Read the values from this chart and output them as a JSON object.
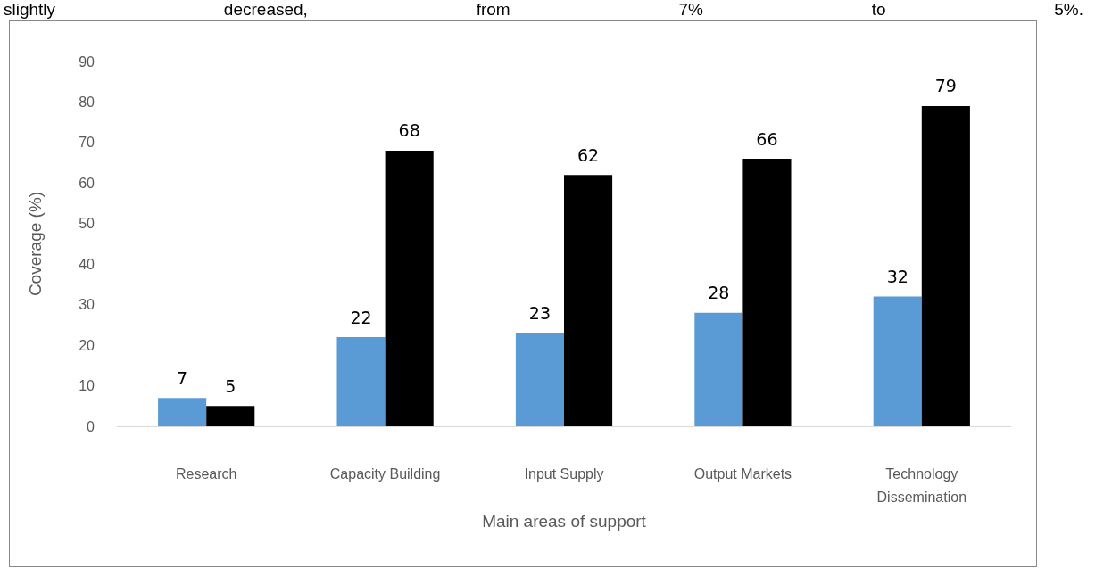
{
  "chart_data": {
    "type": "bar",
    "annotations": [
      "slightly decreased, from 7% to 5%."
    ],
    "xlabel": "Main areas of support",
    "ylabel": "Coverage (%)",
    "categories": [
      "Research",
      "Capacity Building",
      "Input Supply",
      "Output Markets",
      "Technology Dissemination"
    ],
    "series": [
      {
        "color": "#5b9bd5",
        "values": [
          7,
          22,
          23,
          28,
          32
        ]
      },
      {
        "color": "#000000",
        "values": [
          5,
          68,
          62,
          66,
          79
        ]
      }
    ],
    "ylim": [
      0,
      90
    ],
    "yticks": [
      0,
      10,
      20,
      30,
      40,
      50,
      60,
      70,
      80,
      90
    ],
    "data_labels": true,
    "grid": false
  }
}
